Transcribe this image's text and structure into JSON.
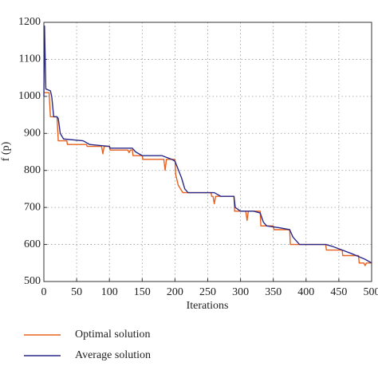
{
  "chart_data": {
    "type": "line",
    "x_label": "Iterations",
    "y_label": "f (p)",
    "xlim": [
      0,
      500
    ],
    "ylim": [
      500,
      1200
    ],
    "xticks": [
      0,
      50,
      100,
      150,
      200,
      250,
      300,
      350,
      400,
      450,
      500
    ],
    "yticks": [
      500,
      600,
      700,
      800,
      900,
      1000,
      1100,
      1200
    ],
    "grid": true,
    "legend": "bottom",
    "series": [
      {
        "name": "Optimal solution",
        "color": "#e8601c",
        "x": [
          0,
          3,
          8,
          10,
          20,
          22,
          35,
          36,
          65,
          66,
          88,
          90,
          92,
          100,
          101,
          128,
          130,
          132,
          135,
          136,
          150,
          151,
          183,
          185,
          187,
          200,
          201,
          205,
          212,
          255,
          256,
          258,
          260,
          262,
          290,
          291,
          308,
          310,
          312,
          330,
          331,
          350,
          351,
          375,
          376,
          430,
          431,
          455,
          456,
          480,
          481,
          488,
          490,
          492,
          500
        ],
        "values": [
          1010,
          1010,
          1010,
          945,
          945,
          880,
          880,
          870,
          870,
          865,
          865,
          845,
          865,
          865,
          855,
          855,
          848,
          855,
          855,
          840,
          840,
          830,
          830,
          800,
          830,
          830,
          790,
          760,
          740,
          740,
          730,
          730,
          710,
          730,
          730,
          690,
          690,
          665,
          690,
          690,
          650,
          650,
          640,
          640,
          600,
          600,
          585,
          585,
          570,
          570,
          550,
          550,
          543,
          550,
          550
        ]
      },
      {
        "name": "Average solution",
        "color": "#2a2a8a",
        "x": [
          0,
          1,
          3,
          10,
          12,
          15,
          20,
          22,
          25,
          30,
          60,
          70,
          100,
          101,
          135,
          140,
          150,
          180,
          195,
          200,
          210,
          215,
          220,
          260,
          270,
          290,
          292,
          300,
          320,
          330,
          335,
          340,
          360,
          375,
          380,
          390,
          430,
          440,
          470,
          490,
          500
        ],
        "values": [
          1000,
          1190,
          1020,
          1015,
          1000,
          945,
          945,
          940,
          900,
          885,
          880,
          870,
          865,
          860,
          860,
          850,
          840,
          840,
          830,
          825,
          780,
          750,
          740,
          740,
          730,
          730,
          700,
          690,
          690,
          685,
          660,
          650,
          645,
          640,
          620,
          600,
          600,
          595,
          575,
          560,
          550
        ]
      }
    ]
  }
}
